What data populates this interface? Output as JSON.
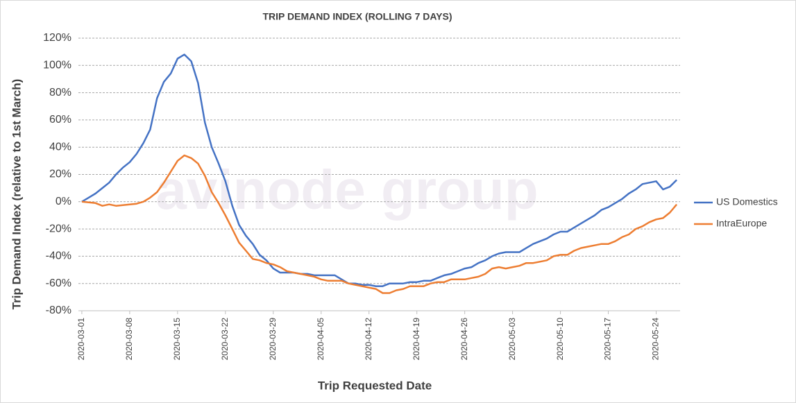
{
  "chart_data": {
    "type": "line",
    "title": "TRIP DEMAND INDEX (ROLLING 7 DAYS)",
    "x_label": "Trip  Requested Date",
    "y_label": "Trip Demand Index (relative to 1st March)",
    "watermark": "avinode group",
    "categories": [
      "2020-03-01",
      null,
      null,
      null,
      null,
      null,
      null,
      "2020-03-08",
      null,
      null,
      null,
      null,
      null,
      null,
      "2020-03-15",
      null,
      null,
      null,
      null,
      null,
      null,
      "2020-03-22",
      null,
      null,
      null,
      null,
      null,
      null,
      "2020-03-29",
      null,
      null,
      null,
      null,
      null,
      null,
      "2020-04-05",
      null,
      null,
      null,
      null,
      null,
      null,
      "2020-04-12",
      null,
      null,
      null,
      null,
      null,
      null,
      "2020-04-19",
      null,
      null,
      null,
      null,
      null,
      null,
      "2020-04-26",
      null,
      null,
      null,
      null,
      null,
      null,
      "2020-05-03",
      null,
      null,
      null,
      null,
      null,
      null,
      "2020-05-10",
      null,
      null,
      null,
      null,
      null,
      null,
      "2020-05-17",
      null,
      null,
      null,
      null,
      null,
      null,
      "2020-05-24",
      null,
      null,
      null
    ],
    "series": [
      {
        "name": "US Domestics",
        "color": "#4472c4",
        "values": [
          0,
          3,
          6,
          10,
          14,
          20,
          25,
          29,
          35,
          43,
          53,
          76,
          88,
          94,
          105,
          108,
          103,
          87,
          58,
          40,
          28,
          15,
          -3,
          -17,
          -25,
          -31,
          -39,
          -43,
          -49,
          -52,
          -52,
          -52,
          -53,
          -53,
          -54,
          -54,
          -54,
          -54,
          -57,
          -60,
          -60,
          -61,
          -61,
          -62,
          -62,
          -60,
          -60,
          -60,
          -59,
          -59,
          -58,
          -58,
          -56,
          -54,
          -53,
          -51,
          -49,
          -48,
          -45,
          -43,
          -40,
          -38,
          -37,
          -37,
          -37,
          -34,
          -31,
          -29,
          -27,
          -24,
          -22,
          -22,
          -19,
          -16,
          -13,
          -10,
          -6,
          -4,
          -1,
          2,
          6,
          9,
          13,
          14,
          15,
          9,
          11,
          16
        ]
      },
      {
        "name": "IntraEurope",
        "color": "#ed7d31",
        "values": [
          0,
          -0.5,
          -1,
          -3,
          -2,
          -3,
          -2.5,
          -2,
          -1.5,
          0,
          3,
          7,
          14,
          22,
          30,
          34,
          32,
          28,
          19,
          7,
          -1,
          -10,
          -20,
          -30,
          -36,
          -42,
          -43,
          -45,
          -46,
          -48,
          -51,
          -52,
          -53,
          -54,
          -55,
          -57,
          -58,
          -58,
          -58,
          -60,
          -61,
          -62,
          -63,
          -64,
          -67,
          -67,
          -65,
          -64,
          -62,
          -62,
          -62,
          -60,
          -59,
          -59,
          -57,
          -57,
          -57,
          -56,
          -55,
          -53,
          -49,
          -48,
          -49,
          -48,
          -47,
          -45,
          -45,
          -44,
          -43,
          -40,
          -39,
          -39,
          -36,
          -34,
          -33,
          -32,
          -31,
          -31,
          -29,
          -26,
          -24,
          -20,
          -18,
          -15,
          -13,
          -12,
          -8,
          -2
        ]
      }
    ],
    "ylim": [
      -80,
      120
    ],
    "yticks": [
      {
        "value": -80,
        "label": "-80%"
      },
      {
        "value": -60,
        "label": "-60%"
      },
      {
        "value": -40,
        "label": "-40%"
      },
      {
        "value": -20,
        "label": "-20%"
      },
      {
        "value": 0,
        "label": "0%"
      },
      {
        "value": 20,
        "label": "20%"
      },
      {
        "value": 40,
        "label": "40%"
      },
      {
        "value": 60,
        "label": "60%"
      },
      {
        "value": 80,
        "label": "80%"
      },
      {
        "value": 100,
        "label": "100%"
      },
      {
        "value": 120,
        "label": "120%"
      }
    ],
    "grid": true,
    "legend": "right"
  }
}
